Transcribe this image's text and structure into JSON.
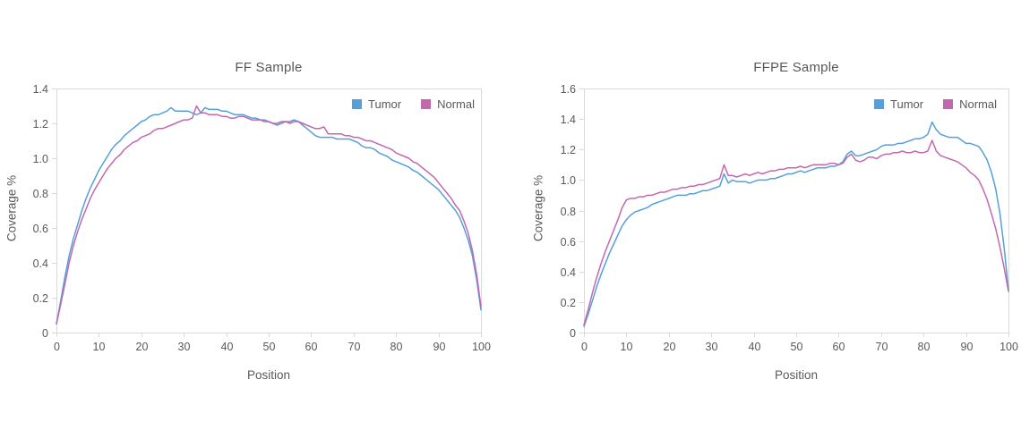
{
  "styles": {
    "axis_color": "#D9D9D9",
    "label_color": "#595959",
    "tumor_color": "#55A0D9",
    "normal_color": "#C368AF"
  },
  "chart_data": [
    {
      "type": "line",
      "title": "FF Sample",
      "xlabel": "Position",
      "ylabel": "Coverage %",
      "xlim": [
        0,
        100
      ],
      "ylim": [
        0,
        1.4
      ],
      "grid": false,
      "legend_position": "top-right-inside",
      "xticks": [
        0,
        10,
        20,
        30,
        40,
        50,
        60,
        70,
        80,
        90,
        100
      ],
      "yticks": [
        0,
        0.2,
        0.4,
        0.6,
        0.8,
        1.0,
        1.2,
        1.4
      ],
      "ytick_labels": [
        "0",
        "0.2",
        "0.4",
        "0.6",
        "0.8",
        "1.0",
        "1.2",
        "1.4"
      ],
      "x": [
        0,
        1,
        2,
        3,
        4,
        5,
        6,
        7,
        8,
        9,
        10,
        11,
        12,
        13,
        14,
        15,
        16,
        17,
        18,
        19,
        20,
        21,
        22,
        23,
        24,
        25,
        26,
        27,
        28,
        29,
        30,
        31,
        32,
        33,
        34,
        35,
        36,
        37,
        38,
        39,
        40,
        41,
        42,
        43,
        44,
        45,
        46,
        47,
        48,
        49,
        50,
        51,
        52,
        53,
        54,
        55,
        56,
        57,
        58,
        59,
        60,
        61,
        62,
        63,
        64,
        65,
        66,
        67,
        68,
        69,
        70,
        71,
        72,
        73,
        74,
        75,
        76,
        77,
        78,
        79,
        80,
        81,
        82,
        83,
        84,
        85,
        86,
        87,
        88,
        89,
        90,
        91,
        92,
        93,
        94,
        95,
        96,
        97,
        98,
        99,
        100
      ],
      "series": [
        {
          "name": "Tumor",
          "color": "#55A0D9",
          "values": [
            0.05,
            0.18,
            0.32,
            0.44,
            0.54,
            0.62,
            0.7,
            0.77,
            0.83,
            0.88,
            0.93,
            0.97,
            1.01,
            1.05,
            1.08,
            1.1,
            1.13,
            1.15,
            1.17,
            1.19,
            1.21,
            1.22,
            1.24,
            1.25,
            1.25,
            1.26,
            1.27,
            1.29,
            1.27,
            1.27,
            1.27,
            1.27,
            1.26,
            1.25,
            1.26,
            1.29,
            1.28,
            1.28,
            1.28,
            1.27,
            1.27,
            1.26,
            1.25,
            1.25,
            1.25,
            1.24,
            1.23,
            1.23,
            1.22,
            1.22,
            1.21,
            1.2,
            1.19,
            1.2,
            1.21,
            1.21,
            1.22,
            1.21,
            1.19,
            1.17,
            1.15,
            1.13,
            1.12,
            1.12,
            1.12,
            1.12,
            1.11,
            1.11,
            1.11,
            1.11,
            1.1,
            1.09,
            1.07,
            1.06,
            1.06,
            1.05,
            1.03,
            1.02,
            1.01,
            0.99,
            0.98,
            0.97,
            0.96,
            0.95,
            0.93,
            0.92,
            0.9,
            0.88,
            0.86,
            0.84,
            0.82,
            0.79,
            0.76,
            0.73,
            0.7,
            0.66,
            0.6,
            0.53,
            0.44,
            0.3,
            0.13
          ]
        },
        {
          "name": "Normal",
          "color": "#C368AF",
          "values": [
            0.05,
            0.16,
            0.28,
            0.4,
            0.5,
            0.58,
            0.65,
            0.71,
            0.77,
            0.82,
            0.86,
            0.9,
            0.94,
            0.97,
            1.0,
            1.02,
            1.05,
            1.07,
            1.09,
            1.1,
            1.12,
            1.13,
            1.14,
            1.16,
            1.17,
            1.17,
            1.18,
            1.19,
            1.2,
            1.21,
            1.22,
            1.22,
            1.23,
            1.3,
            1.26,
            1.26,
            1.25,
            1.25,
            1.25,
            1.24,
            1.24,
            1.23,
            1.23,
            1.24,
            1.24,
            1.23,
            1.22,
            1.22,
            1.22,
            1.21,
            1.21,
            1.2,
            1.2,
            1.21,
            1.21,
            1.2,
            1.21,
            1.21,
            1.2,
            1.19,
            1.18,
            1.17,
            1.17,
            1.18,
            1.14,
            1.14,
            1.14,
            1.14,
            1.13,
            1.13,
            1.12,
            1.12,
            1.11,
            1.1,
            1.1,
            1.09,
            1.08,
            1.07,
            1.06,
            1.05,
            1.03,
            1.02,
            1.01,
            1.0,
            0.98,
            0.97,
            0.95,
            0.93,
            0.91,
            0.89,
            0.86,
            0.83,
            0.8,
            0.77,
            0.73,
            0.7,
            0.64,
            0.57,
            0.47,
            0.33,
            0.15
          ]
        }
      ]
    },
    {
      "type": "line",
      "title": "FFPE Sample",
      "xlabel": "Position",
      "ylabel": "Coverage %",
      "xlim": [
        0,
        100
      ],
      "ylim": [
        0,
        1.6
      ],
      "grid": false,
      "legend_position": "top-right-inside",
      "xticks": [
        0,
        10,
        20,
        30,
        40,
        50,
        60,
        70,
        80,
        90,
        100
      ],
      "yticks": [
        0,
        0.2,
        0.4,
        0.6,
        0.8,
        1.0,
        1.2,
        1.4,
        1.6
      ],
      "ytick_labels": [
        "0",
        "0.2",
        "0.4",
        "0.6",
        "0.8",
        "1.0",
        "1.2",
        "1.4",
        "1.6"
      ],
      "x": [
        0,
        1,
        2,
        3,
        4,
        5,
        6,
        7,
        8,
        9,
        10,
        11,
        12,
        13,
        14,
        15,
        16,
        17,
        18,
        19,
        20,
        21,
        22,
        23,
        24,
        25,
        26,
        27,
        28,
        29,
        30,
        31,
        32,
        33,
        34,
        35,
        36,
        37,
        38,
        39,
        40,
        41,
        42,
        43,
        44,
        45,
        46,
        47,
        48,
        49,
        50,
        51,
        52,
        53,
        54,
        55,
        56,
        57,
        58,
        59,
        60,
        61,
        62,
        63,
        64,
        65,
        66,
        67,
        68,
        69,
        70,
        71,
        72,
        73,
        74,
        75,
        76,
        77,
        78,
        79,
        80,
        81,
        82,
        83,
        84,
        85,
        86,
        87,
        88,
        89,
        90,
        91,
        92,
        93,
        94,
        95,
        96,
        97,
        98,
        99,
        100
      ],
      "series": [
        {
          "name": "Tumor",
          "color": "#55A0D9",
          "values": [
            0.04,
            0.12,
            0.21,
            0.3,
            0.38,
            0.45,
            0.52,
            0.58,
            0.64,
            0.7,
            0.74,
            0.77,
            0.79,
            0.8,
            0.81,
            0.82,
            0.84,
            0.85,
            0.86,
            0.87,
            0.88,
            0.89,
            0.9,
            0.9,
            0.9,
            0.91,
            0.91,
            0.92,
            0.93,
            0.93,
            0.94,
            0.95,
            0.96,
            1.04,
            0.98,
            1.0,
            0.99,
            0.99,
            0.99,
            0.98,
            0.99,
            1.0,
            1.0,
            1.0,
            1.01,
            1.01,
            1.02,
            1.03,
            1.04,
            1.04,
            1.05,
            1.06,
            1.05,
            1.06,
            1.07,
            1.08,
            1.08,
            1.08,
            1.09,
            1.09,
            1.1,
            1.12,
            1.17,
            1.19,
            1.16,
            1.16,
            1.17,
            1.18,
            1.19,
            1.2,
            1.22,
            1.23,
            1.23,
            1.23,
            1.24,
            1.24,
            1.25,
            1.26,
            1.27,
            1.27,
            1.28,
            1.3,
            1.38,
            1.33,
            1.3,
            1.29,
            1.28,
            1.28,
            1.28,
            1.26,
            1.24,
            1.24,
            1.23,
            1.22,
            1.18,
            1.13,
            1.05,
            0.94,
            0.78,
            0.55,
            0.28
          ]
        },
        {
          "name": "Normal",
          "color": "#C368AF",
          "values": [
            0.05,
            0.15,
            0.26,
            0.36,
            0.45,
            0.53,
            0.6,
            0.67,
            0.74,
            0.82,
            0.87,
            0.88,
            0.88,
            0.89,
            0.89,
            0.9,
            0.9,
            0.91,
            0.92,
            0.92,
            0.93,
            0.94,
            0.94,
            0.95,
            0.95,
            0.96,
            0.96,
            0.97,
            0.97,
            0.98,
            0.99,
            1.0,
            1.01,
            1.1,
            1.03,
            1.03,
            1.02,
            1.03,
            1.04,
            1.03,
            1.04,
            1.05,
            1.04,
            1.05,
            1.06,
            1.06,
            1.07,
            1.07,
            1.08,
            1.08,
            1.08,
            1.09,
            1.08,
            1.09,
            1.1,
            1.1,
            1.1,
            1.1,
            1.11,
            1.11,
            1.1,
            1.11,
            1.15,
            1.17,
            1.13,
            1.12,
            1.13,
            1.15,
            1.15,
            1.14,
            1.16,
            1.17,
            1.17,
            1.18,
            1.18,
            1.19,
            1.18,
            1.18,
            1.19,
            1.18,
            1.18,
            1.19,
            1.26,
            1.19,
            1.16,
            1.15,
            1.14,
            1.13,
            1.12,
            1.1,
            1.08,
            1.05,
            1.03,
            1.0,
            0.94,
            0.87,
            0.78,
            0.68,
            0.56,
            0.42,
            0.27
          ]
        }
      ]
    }
  ]
}
